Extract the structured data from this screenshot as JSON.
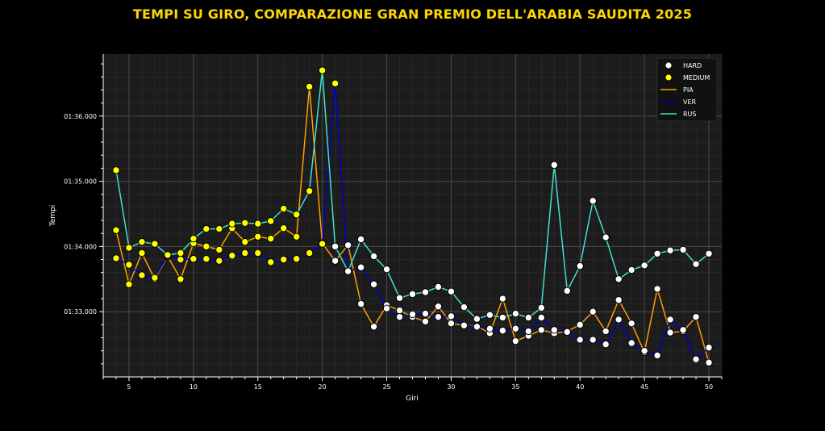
{
  "chart_data": {
    "type": "line",
    "title": "TEMPI SU GIRO, COMPARAZIONE GRAN PREMIO DELL'ARABIA SAUDITA 2025",
    "xlabel": "Giri",
    "ylabel": "Tempi",
    "xlim": [
      3,
      51
    ],
    "ylim": [
      92.0,
      96.95
    ],
    "x_ticks": [
      5,
      10,
      15,
      20,
      25,
      30,
      35,
      40,
      45,
      50
    ],
    "y_ticks": [
      {
        "value": 93.0,
        "label": "01:33.000"
      },
      {
        "value": 94.0,
        "label": "01:34.000"
      },
      {
        "value": 95.0,
        "label": "01:35.000"
      },
      {
        "value": 96.0,
        "label": "01:36.000"
      }
    ],
    "grid": true,
    "legend_position": "top-right",
    "compounds": [
      {
        "name": "HARD",
        "color": "#ffffff"
      },
      {
        "name": "MEDIUM",
        "color": "#ffff00"
      }
    ],
    "series": [
      {
        "name": "PIA",
        "color": "#ff9f00",
        "x": [
          4,
          5,
          6,
          7,
          8,
          9,
          10,
          11,
          12,
          13,
          14,
          15,
          16,
          17,
          18,
          19,
          20,
          21,
          22,
          23,
          24,
          25,
          26,
          27,
          28,
          29,
          30,
          31,
          32,
          33,
          34,
          35,
          36,
          37,
          38,
          39,
          40,
          41,
          42,
          43,
          44,
          45,
          46,
          47,
          48,
          49,
          50
        ],
        "values": [
          94.25,
          93.42,
          93.9,
          93.5,
          93.85,
          93.5,
          94.05,
          94.0,
          93.95,
          94.28,
          94.07,
          94.15,
          94.12,
          94.28,
          94.15,
          96.45,
          94.05,
          93.78,
          94.02,
          93.12,
          92.77,
          93.1,
          93.02,
          92.92,
          92.85,
          93.08,
          92.82,
          92.79,
          92.78,
          92.67,
          93.2,
          92.55,
          92.63,
          92.72,
          92.67,
          92.7,
          92.8,
          93.0,
          92.7,
          93.18,
          92.82,
          92.38,
          93.35,
          92.68,
          92.7,
          92.92,
          92.22
        ],
        "compound": [
          "MEDIUM",
          "MEDIUM",
          "MEDIUM",
          "MEDIUM",
          "MEDIUM",
          "MEDIUM",
          "MEDIUM",
          "MEDIUM",
          "MEDIUM",
          "MEDIUM",
          "MEDIUM",
          "MEDIUM",
          "MEDIUM",
          "MEDIUM",
          "MEDIUM",
          "MEDIUM",
          "MEDIUM",
          "HARD",
          "HARD",
          "HARD",
          "HARD",
          "HARD",
          "HARD",
          "HARD",
          "HARD",
          "HARD",
          "HARD",
          "HARD",
          "HARD",
          "HARD",
          "HARD",
          "HARD",
          "HARD",
          "HARD",
          "HARD",
          "HARD",
          "HARD",
          "HARD",
          "HARD",
          "HARD",
          "HARD",
          "HARD",
          "HARD",
          "HARD",
          "HARD",
          "HARD",
          "HARD"
        ]
      },
      {
        "name": "VER",
        "color": "#0000cc",
        "x": [
          4,
          5,
          6,
          7,
          8,
          9,
          10,
          11,
          12,
          13,
          14,
          15,
          16,
          17,
          18,
          19,
          20,
          21,
          22,
          23,
          24,
          25,
          26,
          27,
          28,
          29,
          30,
          31,
          32,
          33,
          34,
          35,
          36,
          37,
          38,
          39,
          40,
          41,
          42,
          43,
          44,
          45,
          46,
          47,
          48,
          49,
          50
        ],
        "values": [
          93.82,
          93.72,
          93.56,
          93.52,
          93.86,
          93.8,
          93.81,
          93.81,
          93.78,
          93.86,
          93.9,
          93.9,
          93.76,
          93.8,
          93.81,
          93.9,
          94.04,
          96.5,
          93.62,
          93.68,
          93.42,
          93.05,
          92.92,
          92.96,
          92.97,
          92.92,
          92.93,
          92.79,
          92.77,
          92.74,
          92.71,
          92.74,
          92.7,
          92.91,
          92.72,
          92.69,
          92.57,
          92.57,
          92.5,
          92.88,
          92.52,
          92.4,
          92.33,
          92.88,
          92.72,
          92.27,
          92.45
        ],
        "compound": [
          "MEDIUM",
          "MEDIUM",
          "MEDIUM",
          "MEDIUM",
          "MEDIUM",
          "MEDIUM",
          "MEDIUM",
          "MEDIUM",
          "MEDIUM",
          "MEDIUM",
          "MEDIUM",
          "MEDIUM",
          "MEDIUM",
          "MEDIUM",
          "MEDIUM",
          "MEDIUM",
          "MEDIUM",
          "MEDIUM",
          "HARD",
          "HARD",
          "HARD",
          "HARD",
          "HARD",
          "HARD",
          "HARD",
          "HARD",
          "HARD",
          "HARD",
          "HARD",
          "HARD",
          "HARD",
          "HARD",
          "HARD",
          "HARD",
          "HARD",
          "HARD",
          "HARD",
          "HARD",
          "HARD",
          "HARD",
          "HARD",
          "HARD",
          "HARD",
          "HARD",
          "HARD",
          "HARD",
          "HARD"
        ]
      },
      {
        "name": "RUS",
        "color": "#40e0d0",
        "x": [
          4,
          5,
          6,
          7,
          8,
          9,
          10,
          11,
          12,
          13,
          14,
          15,
          16,
          17,
          18,
          19,
          20,
          21,
          22,
          23,
          24,
          25,
          26,
          27,
          28,
          29,
          30,
          31,
          32,
          33,
          34,
          35,
          36,
          37,
          38,
          39,
          40,
          41,
          42,
          43,
          44,
          45,
          46,
          47,
          48,
          49,
          50
        ],
        "values": [
          95.17,
          93.98,
          94.07,
          94.04,
          93.87,
          93.9,
          94.12,
          94.27,
          94.27,
          94.35,
          94.36,
          94.35,
          94.39,
          94.58,
          94.49,
          94.85,
          96.7,
          94.0,
          93.62,
          94.11,
          93.85,
          93.65,
          93.21,
          93.27,
          93.3,
          93.38,
          93.31,
          93.07,
          92.89,
          92.95,
          92.91,
          92.97,
          92.91,
          93.06,
          95.25,
          93.32,
          93.7,
          94.7,
          94.14,
          93.5,
          93.64,
          93.71,
          93.89,
          93.94,
          93.95,
          93.73,
          93.89
        ],
        "compound": [
          "MEDIUM",
          "MEDIUM",
          "MEDIUM",
          "MEDIUM",
          "MEDIUM",
          "MEDIUM",
          "MEDIUM",
          "MEDIUM",
          "MEDIUM",
          "MEDIUM",
          "MEDIUM",
          "MEDIUM",
          "MEDIUM",
          "MEDIUM",
          "MEDIUM",
          "MEDIUM",
          "MEDIUM",
          "HARD",
          "HARD",
          "HARD",
          "HARD",
          "HARD",
          "HARD",
          "HARD",
          "HARD",
          "HARD",
          "HARD",
          "HARD",
          "HARD",
          "HARD",
          "HARD",
          "HARD",
          "HARD",
          "HARD",
          "HARD",
          "HARD",
          "HARD",
          "HARD",
          "HARD",
          "HARD",
          "HARD",
          "HARD",
          "HARD",
          "HARD",
          "HARD",
          "HARD",
          "HARD"
        ]
      }
    ]
  }
}
